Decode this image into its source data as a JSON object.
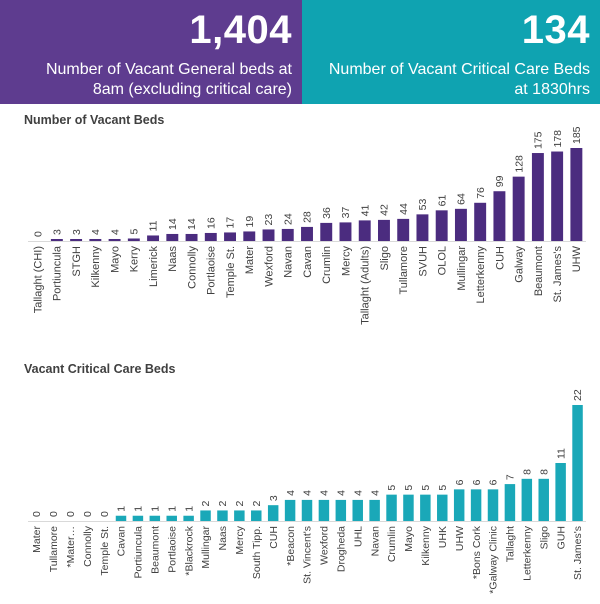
{
  "kpis": {
    "general": {
      "value": "1,404",
      "label_line1": "Number of Vacant General beds at",
      "label_line2": "8am (excluding critical care)",
      "color": "#5e3c8f"
    },
    "critical": {
      "value": "134",
      "label_line1": "Number of Vacant Critical Care Beds",
      "label_line2": "at 1830hrs",
      "color": "#0fa3b1"
    }
  },
  "chart_data": [
    {
      "type": "bar",
      "title": "Number of Vacant Beds",
      "color": "#4b2c7f",
      "categories": [
        "Tallaght (CHI)",
        "Portiuncula",
        "STGH",
        "Kilkenny",
        "Mayo",
        "Kerry",
        "Limerick",
        "Naas",
        "Connolly",
        "Portlaoise",
        "Temple St.",
        "Mater",
        "Wexford",
        "Navan",
        "Cavan",
        "Crumlin",
        "Mercy",
        "Tallaght (Adults)",
        "Sligo",
        "Tullamore",
        "SVUH",
        "OLOL",
        "Mullingar",
        "Letterkenny",
        "CUH",
        "Galway",
        "Beaumont",
        "St. James's",
        "UHW"
      ],
      "values": [
        0,
        3,
        3,
        4,
        4,
        5,
        11,
        14,
        14,
        16,
        17,
        19,
        23,
        24,
        28,
        36,
        37,
        41,
        42,
        44,
        53,
        61,
        64,
        76,
        99,
        128,
        175,
        178,
        185
      ],
      "xlabel": "",
      "ylabel": "",
      "ylim": [
        0,
        185
      ],
      "grid": false,
      "legend": "none"
    },
    {
      "type": "bar",
      "title": "Vacant Critical Care Beds",
      "color": "#1aa8b8",
      "categories": [
        "Mater",
        "Tullamore",
        "*Mater…",
        "Connolly",
        "Temple St.",
        "Cavan",
        "Portiuncula",
        "Beaumont",
        "Portlaoise",
        "*Blackrock",
        "Mullingar",
        "Naas",
        "Mercy",
        "South Tipp.",
        "CUH",
        "*Beacon",
        "St. Vincent's",
        "Wexford",
        "Drogheda",
        "UHL",
        "Navan",
        "Crumlin",
        "Mayo",
        "Kilkenny",
        "UHK",
        "UHW",
        "*Bons Cork",
        "*Galway Clinic",
        "Tallaght",
        "Letterkenny",
        "Sligo",
        "GUH",
        "St. James's"
      ],
      "values": [
        0,
        0,
        0,
        0,
        0,
        1,
        1,
        1,
        1,
        1,
        2,
        2,
        2,
        2,
        3,
        4,
        4,
        4,
        4,
        4,
        4,
        5,
        5,
        5,
        5,
        6,
        6,
        6,
        7,
        8,
        8,
        11,
        22
      ],
      "xlabel": "",
      "ylabel": "",
      "ylim": [
        0,
        22
      ],
      "grid": false,
      "legend": "none"
    }
  ]
}
